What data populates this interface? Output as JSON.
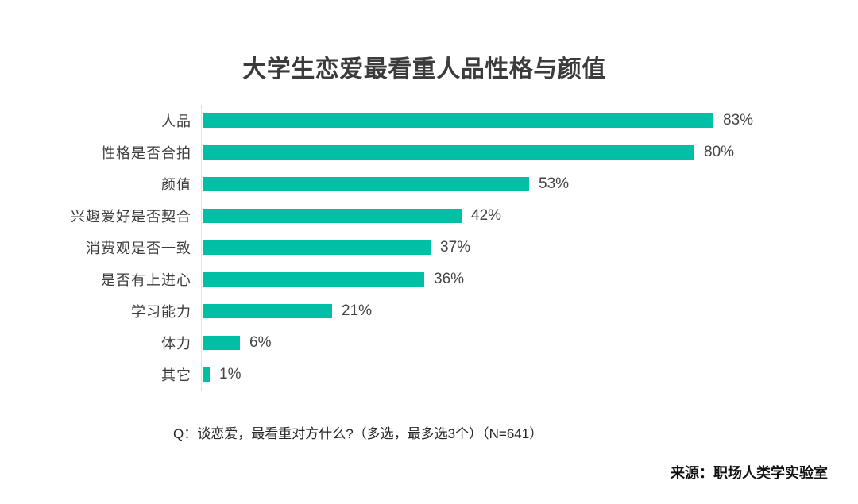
{
  "title": "大学生恋爱最看重人品性格与颜值",
  "footer": {
    "question": "Q：谈恋爱，最看重对方什么?（多选，最多选3个）（N=641）",
    "source": "来源：职场人类学实验室"
  },
  "colors": {
    "bar": "#00bfa5",
    "axis_line": "#e3e3e3",
    "text": "#3c3c3c"
  },
  "chart_data": {
    "type": "bar",
    "orientation": "horizontal",
    "title": "大学生恋爱最看重人品性格与颜值",
    "categories": [
      "人品",
      "性格是否合拍",
      "颜值",
      "兴趣爱好是否契合",
      "消费观是否一致",
      "是否有上进心",
      "学习能力",
      "体力",
      "其它"
    ],
    "values": [
      83,
      80,
      53,
      42,
      37,
      36,
      21,
      6,
      1
    ],
    "value_labels": [
      "83%",
      "80%",
      "53%",
      "42%",
      "37%",
      "36%",
      "21%",
      "6%",
      "1%"
    ],
    "xlabel": "",
    "ylabel": "",
    "xlim": [
      0,
      100
    ],
    "grid": false,
    "legend": false,
    "annotation": "Q：谈恋爱，最看重对方什么?（多选，最多选3个）（N=641）",
    "source": "来源：职场人类学实验室"
  }
}
